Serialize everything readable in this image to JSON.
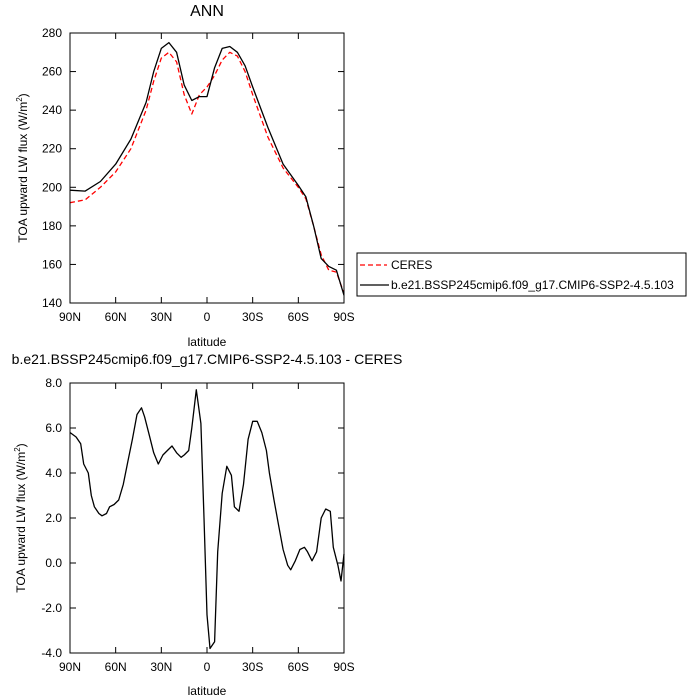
{
  "chart_data": [
    {
      "type": "line",
      "title": "ANN",
      "xlabel": "latitude",
      "ylabel_main": "TOA upward LW flux (W/m",
      "ylabel_sup": "2",
      "ylabel_tail": ")",
      "xlim": [
        90,
        -90
      ],
      "ylim": [
        140,
        280
      ],
      "xticks": [
        90,
        60,
        30,
        0,
        -30,
        -60,
        -90
      ],
      "xtick_labels": [
        "90N",
        "60N",
        "30N",
        "0",
        "30S",
        "60S",
        "90S"
      ],
      "yticks": [
        140,
        160,
        180,
        200,
        220,
        240,
        260,
        280
      ],
      "ytick_labels": [
        "140",
        "160",
        "180",
        "200",
        "220",
        "240",
        "260",
        "280"
      ],
      "legend_position": "right",
      "series": [
        {
          "name": "CERES",
          "color": "#ff0000",
          "dash": true,
          "x": [
            90,
            80,
            70,
            60,
            50,
            40,
            35,
            30,
            25,
            20,
            15,
            10,
            5,
            0,
            -5,
            -10,
            -15,
            -20,
            -25,
            -30,
            -40,
            -50,
            -60,
            -65,
            -70,
            -75,
            -80,
            -85,
            -90
          ],
          "y": [
            192,
            193.5,
            200,
            208,
            220,
            240,
            255,
            267,
            270,
            265,
            248,
            238,
            248,
            252,
            258,
            266,
            270,
            268,
            260,
            248,
            226,
            210,
            200,
            194,
            180,
            165,
            157,
            156,
            145
          ]
        },
        {
          "name": "b.e21.BSSP245cmip6.f09_g17.CMIP6-SSP2-4.5.103",
          "color": "#000000",
          "dash": false,
          "x": [
            90,
            80,
            70,
            60,
            50,
            40,
            35,
            30,
            25,
            20,
            15,
            10,
            5,
            0,
            -5,
            -10,
            -15,
            -20,
            -25,
            -30,
            -40,
            -50,
            -60,
            -65,
            -70,
            -75,
            -80,
            -85,
            -90
          ],
          "y": [
            198.5,
            198,
            203,
            212,
            225,
            244,
            260,
            272,
            275,
            270,
            253,
            245,
            247,
            247,
            262,
            272,
            273,
            270,
            263,
            252,
            231,
            212,
            201,
            195,
            180,
            163,
            159,
            157,
            144
          ]
        }
      ]
    },
    {
      "type": "line",
      "title": "b.e21.BSSP245cmip6.f09_g17.CMIP6-SSP2-4.5.103 - CERES",
      "xlabel": "latitude",
      "ylabel_main": "TOA upward LW flux (W/m",
      "ylabel_sup": "2",
      "ylabel_tail": ")",
      "xlim": [
        90,
        -90
      ],
      "ylim": [
        -4,
        8
      ],
      "xticks": [
        90,
        60,
        30,
        0,
        -30,
        -60,
        -90
      ],
      "xtick_labels": [
        "90N",
        "60N",
        "30N",
        "0",
        "30S",
        "60S",
        "90S"
      ],
      "yticks": [
        -4,
        -2,
        0,
        2,
        4,
        6,
        8
      ],
      "ytick_labels": [
        "-4.0",
        "-2.0",
        "0.0",
        "2.0",
        "4.0",
        "6.0",
        "8.0"
      ],
      "series": [
        {
          "color": "#000000",
          "x": [
            90,
            86,
            83,
            81,
            78,
            76,
            74,
            71,
            69,
            66,
            64,
            61,
            58,
            55,
            52,
            49,
            46,
            43,
            41,
            38,
            35,
            32,
            29,
            26,
            23,
            20,
            17,
            15,
            12,
            10,
            7,
            4,
            2,
            0,
            -2,
            -5,
            -7,
            -10,
            -13,
            -16,
            -18,
            -21,
            -24,
            -27,
            -30,
            -33,
            -36,
            -39,
            -41,
            -44,
            -47,
            -50,
            -53,
            -55,
            -58,
            -61,
            -64,
            -66,
            -69,
            -72,
            -75,
            -78,
            -81,
            -83,
            -86,
            -88,
            -90
          ],
          "y": [
            5.8,
            5.6,
            5.3,
            4.4,
            4.0,
            3.0,
            2.5,
            2.2,
            2.1,
            2.2,
            2.5,
            2.6,
            2.8,
            3.5,
            4.5,
            5.5,
            6.6,
            6.9,
            6.5,
            5.7,
            4.9,
            4.4,
            4.8,
            5.0,
            5.2,
            4.9,
            4.7,
            4.8,
            5.0,
            6.0,
            7.7,
            6.2,
            2.0,
            -2.3,
            -3.8,
            -3.5,
            0.5,
            3.1,
            4.3,
            3.9,
            2.5,
            2.3,
            3.5,
            5.5,
            6.3,
            6.3,
            5.8,
            5.0,
            4.0,
            2.8,
            1.7,
            0.6,
            -0.1,
            -0.3,
            0.1,
            0.6,
            0.7,
            0.5,
            0.1,
            0.5,
            2.0,
            2.4,
            2.3,
            0.7,
            -0.1,
            -0.8,
            0.4
          ]
        }
      ]
    }
  ]
}
